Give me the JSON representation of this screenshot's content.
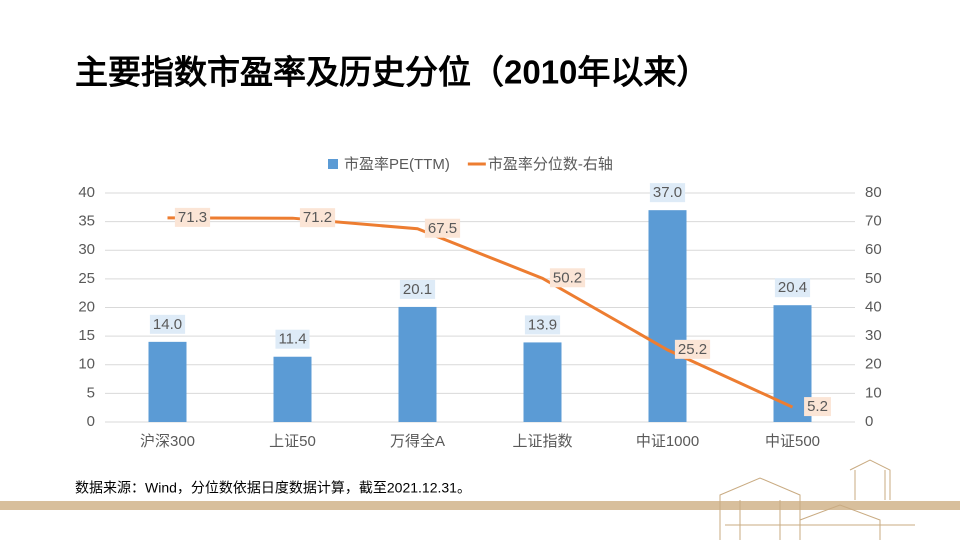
{
  "chart_data": {
    "type": "bar-line",
    "title": "主要指数市盈率及历史分位（2010年以来）",
    "source": "数据来源：Wind，分位数依据日度数据计算，截至2021.12.31。",
    "categories": [
      "沪深300",
      "上证50",
      "万得全A",
      "上证指数",
      "中证1000",
      "中证500"
    ],
    "series": [
      {
        "name": "市盈率PE(TTM)",
        "type": "bar",
        "color": "#5b9bd5",
        "values": [
          14.0,
          11.4,
          20.1,
          13.9,
          37.0,
          20.4
        ],
        "value_labels": [
          "14.0",
          "11.4",
          "20.1",
          "13.9",
          "37.0",
          "20.4"
        ]
      },
      {
        "name": "市盈率分位数-右轴",
        "type": "line",
        "axis": "y2",
        "color": "#ed7d31",
        "values": [
          71.3,
          71.2,
          67.5,
          50.2,
          25.2,
          5.2
        ],
        "value_labels": [
          "71.3",
          "71.2",
          "67.5",
          "50.2",
          "25.2",
          "5.2"
        ]
      }
    ],
    "ylim": [
      0,
      40
    ],
    "yticks": [
      0,
      5,
      10,
      15,
      20,
      25,
      30,
      35,
      40
    ],
    "y2lim": [
      0,
      80
    ],
    "y2ticks": [
      0,
      10,
      20,
      30,
      40,
      50,
      60,
      70,
      80
    ],
    "grid": true,
    "legend": "top"
  }
}
